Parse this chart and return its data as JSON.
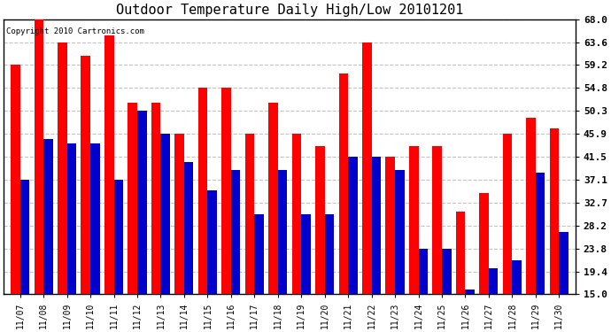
{
  "title": "Outdoor Temperature Daily High/Low 20101201",
  "copyright": "Copyright 2010 Cartronics.com",
  "dates": [
    "11/07",
    "11/08",
    "11/09",
    "11/10",
    "11/11",
    "11/12",
    "11/13",
    "11/14",
    "11/15",
    "11/16",
    "11/17",
    "11/18",
    "11/19",
    "11/20",
    "11/21",
    "11/22",
    "11/23",
    "11/24",
    "11/25",
    "11/26",
    "11/27",
    "11/28",
    "11/29",
    "11/30"
  ],
  "highs": [
    59.2,
    68.0,
    63.6,
    61.0,
    64.8,
    52.0,
    52.0,
    45.9,
    54.8,
    54.8,
    45.9,
    52.0,
    45.9,
    43.5,
    57.5,
    63.6,
    41.5,
    43.5,
    43.5,
    31.0,
    34.5,
    45.9,
    49.0,
    47.0
  ],
  "lows": [
    37.1,
    45.0,
    44.0,
    44.0,
    37.1,
    50.3,
    45.9,
    40.5,
    35.0,
    39.0,
    30.5,
    39.0,
    30.5,
    30.5,
    41.5,
    41.5,
    39.0,
    23.8,
    23.8,
    16.0,
    20.0,
    21.5,
    38.5,
    27.0
  ],
  "ylim": [
    15.0,
    68.0
  ],
  "yticks": [
    15.0,
    19.4,
    23.8,
    28.2,
    32.7,
    37.1,
    41.5,
    45.9,
    50.3,
    54.8,
    59.2,
    63.6,
    68.0
  ],
  "high_color": "#ff0000",
  "low_color": "#0000cc",
  "bg_color": "#ffffff",
  "grid_color": "#aaaaaa",
  "title_fontsize": 11,
  "bar_width": 0.4
}
